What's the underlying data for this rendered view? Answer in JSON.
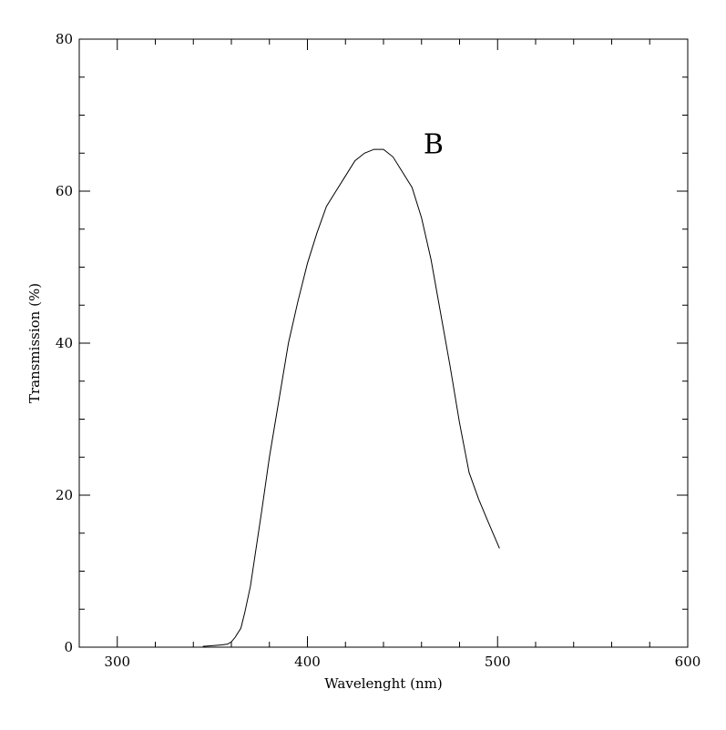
{
  "chart_data": {
    "type": "line",
    "title": "",
    "xlabel": "Wavelenght (nm)",
    "ylabel": "Transmission (%)",
    "xlim": [
      280,
      600
    ],
    "ylim": [
      0,
      80
    ],
    "x_ticks": [
      300,
      400,
      500,
      600
    ],
    "x_tick_labels": [
      "300",
      "400",
      "500",
      "600"
    ],
    "y_ticks": [
      0,
      20,
      40,
      60,
      80
    ],
    "y_tick_labels": [
      "0",
      "20",
      "40",
      "60",
      "80"
    ],
    "grid": false,
    "annotations": [
      {
        "text": "B",
        "x": 461,
        "y": 65
      }
    ],
    "series": [
      {
        "x": [
          345,
          350,
          355,
          358,
          360,
          362,
          365,
          367,
          370,
          373,
          376,
          380,
          385,
          390,
          395,
          400,
          405,
          410,
          415,
          420,
          425,
          430,
          435,
          440,
          445,
          450,
          455,
          460,
          465,
          470,
          475,
          480,
          485,
          490,
          495,
          501
        ],
        "y": [
          0.1,
          0.2,
          0.3,
          0.4,
          0.7,
          1.3,
          2.5,
          4.5,
          8.0,
          13.0,
          18.0,
          25.0,
          32.5,
          40.0,
          45.5,
          50.5,
          54.5,
          58.0,
          60.0,
          62.0,
          64.0,
          65.0,
          65.5,
          65.5,
          64.5,
          62.5,
          60.5,
          56.5,
          51.0,
          44.0,
          37.0,
          29.5,
          23.0,
          19.5,
          16.5,
          13.0
        ]
      }
    ]
  }
}
